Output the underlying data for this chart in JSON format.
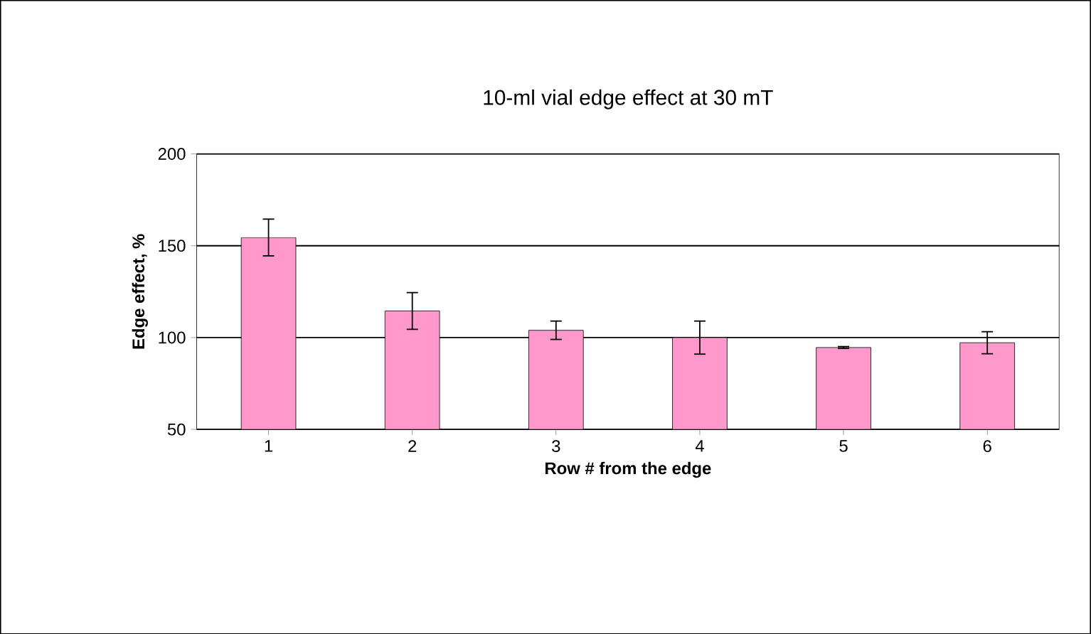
{
  "chart_data": {
    "type": "bar",
    "title": "10-ml vial edge effect at 30 mT",
    "xlabel": "Row # from the edge",
    "ylabel": "Edge effect, %",
    "categories": [
      "1",
      "2",
      "3",
      "4",
      "5",
      "6"
    ],
    "values": [
      154.5,
      114.5,
      104,
      100,
      94.6,
      97.2
    ],
    "errors": [
      10,
      10,
      5,
      9,
      0.5,
      6
    ],
    "color": "#ff99cc",
    "ylim": [
      50,
      200
    ],
    "yticks": [
      50,
      100,
      150,
      200
    ],
    "grid": "y"
  }
}
